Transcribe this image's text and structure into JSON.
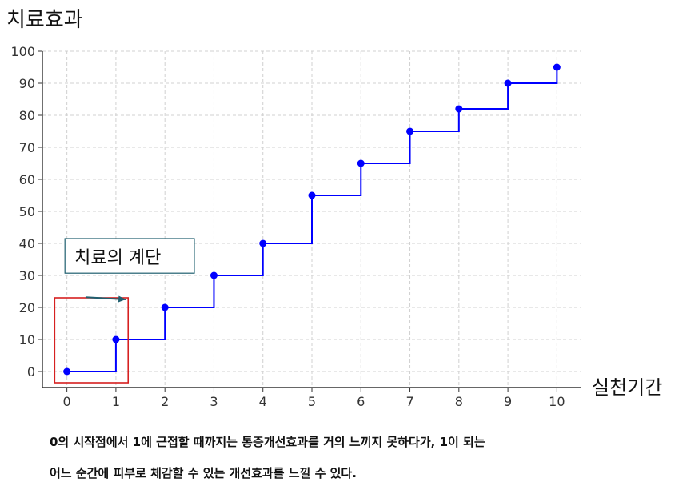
{
  "chart_data": {
    "type": "line",
    "step": "post",
    "ylabel": "치료효과",
    "xlabel": "실천기간",
    "x": [
      0,
      1,
      2,
      3,
      4,
      5,
      6,
      7,
      8,
      9,
      10
    ],
    "y": [
      0,
      10,
      20,
      30,
      40,
      55,
      65,
      75,
      82,
      90,
      95
    ],
    "xlim": [
      -0.5,
      10.5
    ],
    "ylim": [
      -5,
      100
    ],
    "xticks": [
      "0",
      "1",
      "2",
      "3",
      "4",
      "5",
      "6",
      "7",
      "8",
      "9",
      "10"
    ],
    "yticks": [
      "0",
      "10",
      "20",
      "30",
      "40",
      "50",
      "60",
      "70",
      "80",
      "90",
      "100"
    ],
    "grid": true,
    "line_color": "#0000ff",
    "annotation": {
      "text": "치료의 계단",
      "target": [
        1.2,
        22.5
      ],
      "box_color": "#1f5f6f",
      "arrow_color": "#1f5f6f",
      "highlight": {
        "x": [
          -0.25,
          1.25
        ],
        "y": [
          -3.5,
          23
        ],
        "color": "#d62020"
      }
    }
  },
  "caption": {
    "line1": "0의 시작점에서 1에 근접할 때까지는 통증개선효과를 거의 느끼지 못하다가, 1이 되는",
    "line2": "어느 순간에 피부로 체감할 수 있는 개선효과를 느낄 수 있다."
  }
}
